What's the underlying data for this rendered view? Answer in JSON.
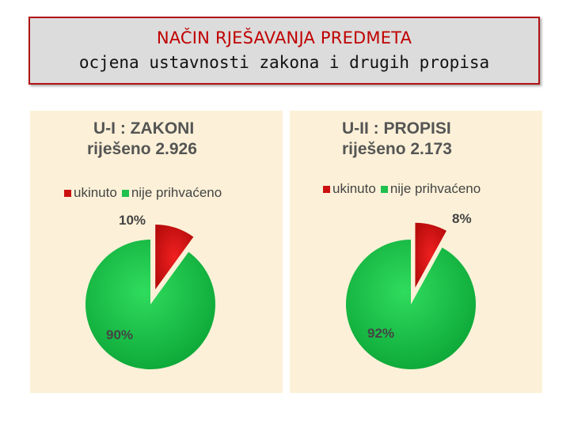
{
  "header": {
    "title": "NAČIN RJEŠAVANJA PREDMETA",
    "subtitle": "ocjena ustavnosti zakona i drugih propisa"
  },
  "colors": {
    "header_border": "#b01313",
    "header_bg": "#dcdcdc",
    "title_red": "#c00000",
    "panel_bg": "#fcf1d8",
    "ukinuto": "#d41111",
    "nije_prihvaceno": "#19bf48"
  },
  "chart_data": [
    {
      "type": "pie",
      "title": "U-I : ZAKONI",
      "subtitle": "riješeno  2.926",
      "legend": [
        "ukinuto",
        "nije prihvaćeno"
      ],
      "legend_position": "top",
      "slices": [
        {
          "label": "ukinuto",
          "value": 10,
          "display": "10%",
          "exploded": true
        },
        {
          "label": "nije prihvaćeno",
          "value": 90,
          "display": "90%",
          "exploded": false
        }
      ]
    },
    {
      "type": "pie",
      "title": "U-II : PROPISI",
      "subtitle": "riješeno  2.173",
      "legend": [
        "ukinuto",
        "nije prihvaćeno"
      ],
      "legend_position": "top",
      "slices": [
        {
          "label": "ukinuto",
          "value": 8,
          "display": "8%",
          "exploded": true
        },
        {
          "label": "nije prihvaćeno",
          "value": 92,
          "display": "92%",
          "exploded": false
        }
      ]
    }
  ]
}
